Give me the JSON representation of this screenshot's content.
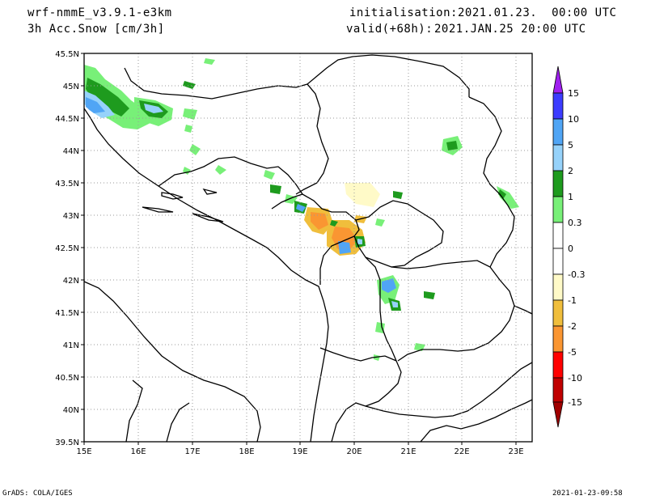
{
  "header": {
    "model": "wrf-nmmE_v3.9.1-e3km",
    "field": "3h Acc.Snow [cm/3h]",
    "init_label": "initialisation:",
    "init_value": "2021.01.23.  00:00 UTC",
    "valid_label": "valid(+68h):",
    "valid_value": "2021.JAN.25 20:00 UTC"
  },
  "footer": {
    "left": "GrADS: COLA/IGES",
    "right": "2021-01-23-09:58"
  },
  "map": {
    "lon_range": [
      15,
      23.3
    ],
    "lat_range": [
      39.5,
      45.5
    ],
    "lon_ticks": [
      "15E",
      "16E",
      "17E",
      "18E",
      "19E",
      "20E",
      "21E",
      "22E",
      "23E"
    ],
    "lat_ticks": [
      "45.5N",
      "45N",
      "44.5N",
      "44N",
      "43.5N",
      "43N",
      "42.5N",
      "42N",
      "41.5N",
      "41N",
      "40.5N",
      "40N",
      "39.5N"
    ],
    "grid": "dotted"
  },
  "colorbar": {
    "labels": [
      "15",
      "10",
      "5",
      "2",
      "1",
      "0.3",
      "0",
      "-0.3",
      "-1",
      "-2",
      "-5",
      "-10",
      "-15"
    ],
    "colors": [
      "#a020f0",
      "#3c3cff",
      "#50a5f5",
      "#96d2fa",
      "#1e9b1e",
      "#78f078",
      "#ffffff",
      "#fffac8",
      "#f0be3c",
      "#fa9632",
      "#ff0000",
      "#c00000",
      "#a00000"
    ]
  }
}
